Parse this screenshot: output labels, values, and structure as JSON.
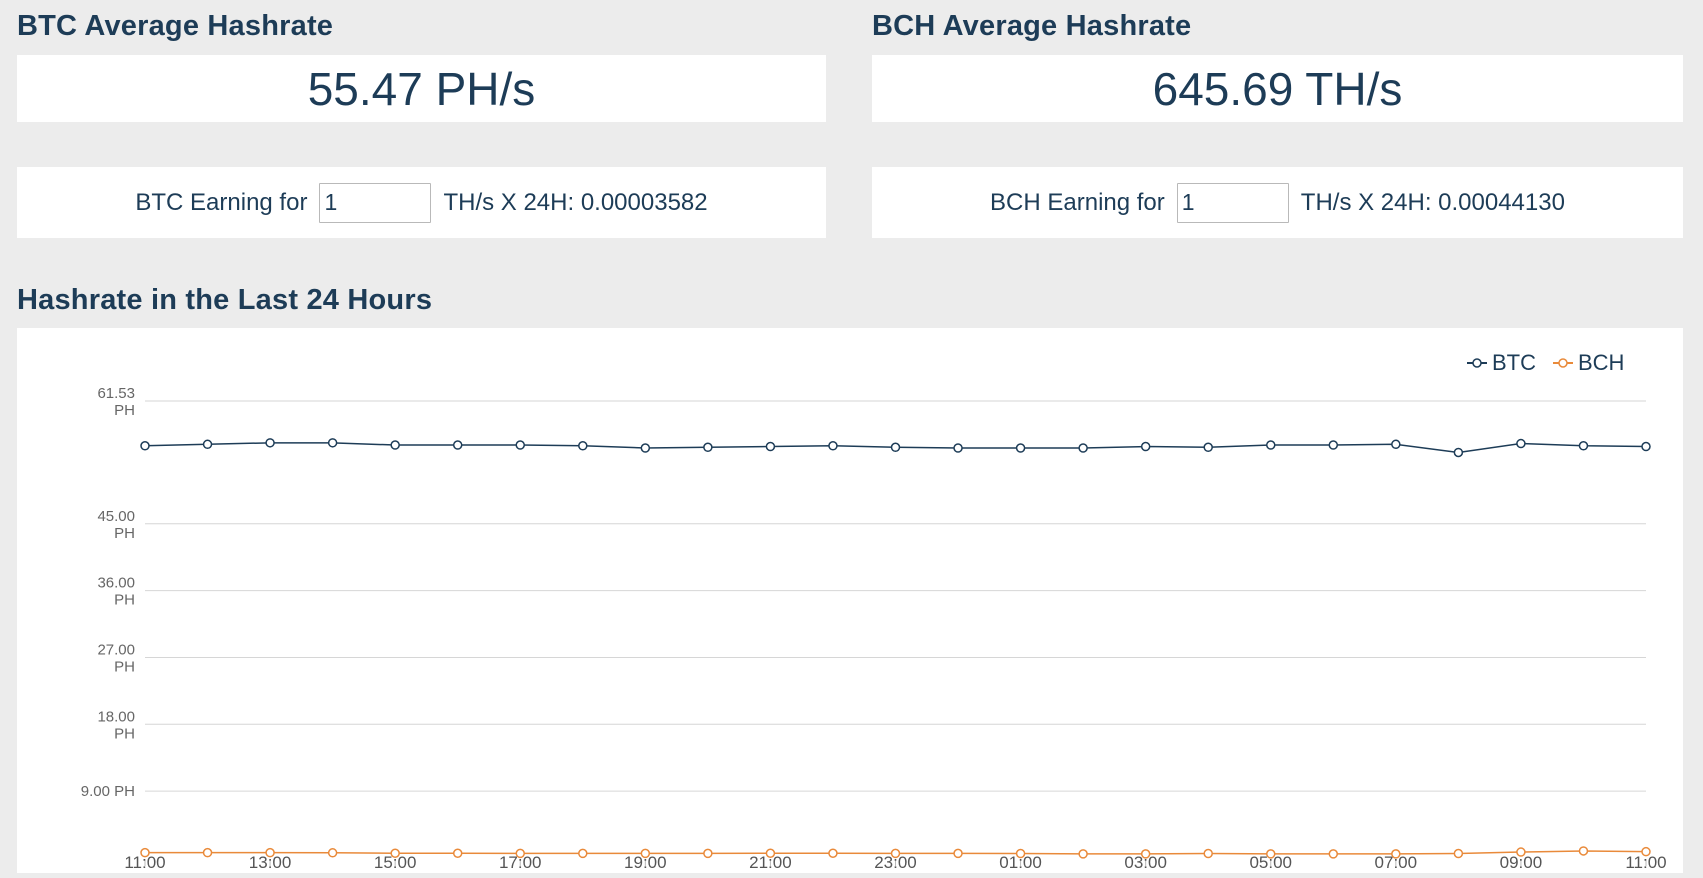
{
  "btc": {
    "title": "BTC Average Hashrate",
    "value": "55.47 PH/s",
    "earning_prefix": "BTC Earning for",
    "input_value": "1",
    "earning_suffix": "TH/s X 24H: 0.00003582"
  },
  "bch": {
    "title": "BCH Average Hashrate",
    "value": "645.69 TH/s",
    "earning_prefix": "BCH Earning for",
    "input_value": "1",
    "earning_suffix": "TH/s X 24H: 0.00044130"
  },
  "chart_section": {
    "title": "Hashrate in the Last 24 Hours"
  },
  "chart_data": {
    "type": "line",
    "title": "",
    "xlabel": "",
    "ylabel": "",
    "unit": "PH",
    "ylim": [
      0,
      61.53
    ],
    "y_ticks": [
      {
        "value": 61.53,
        "number": "61.53",
        "unit": "PH"
      },
      {
        "value": 45.0,
        "number": "45.00",
        "unit": "PH"
      },
      {
        "value": 36.0,
        "number": "36.00",
        "unit": "PH"
      },
      {
        "value": 27.0,
        "number": "27.00",
        "unit": "PH"
      },
      {
        "value": 18.0,
        "number": "18.00",
        "unit": "PH"
      },
      {
        "value": 9.0,
        "number": "9.00 PH",
        "unit": ""
      }
    ],
    "x_tick_labels": [
      "11:00",
      "13:00",
      "15:00",
      "17:00",
      "19:00",
      "21:00",
      "23:00",
      "01:00",
      "03:00",
      "05:00",
      "07:00",
      "09:00",
      "11:00"
    ],
    "x": [
      "11:00",
      "12:00",
      "13:00",
      "14:00",
      "15:00",
      "16:00",
      "17:00",
      "18:00",
      "19:00",
      "20:00",
      "21:00",
      "22:00",
      "23:00",
      "00:00",
      "01:00",
      "02:00",
      "03:00",
      "04:00",
      "05:00",
      "06:00",
      "07:00",
      "08:00",
      "09:00",
      "10:00",
      "11:00"
    ],
    "grid": true,
    "legend_position": "top-right",
    "series": [
      {
        "name": "BTC",
        "color": "#1d3c57",
        "values": [
          55.5,
          55.7,
          55.9,
          55.9,
          55.6,
          55.6,
          55.6,
          55.5,
          55.2,
          55.3,
          55.4,
          55.5,
          55.3,
          55.2,
          55.2,
          55.2,
          55.4,
          55.3,
          55.6,
          55.6,
          55.7,
          54.6,
          55.8,
          55.5,
          55.4
        ]
      },
      {
        "name": "BCH",
        "color": "#e98a3a",
        "values": [
          0.72,
          0.72,
          0.72,
          0.7,
          0.64,
          0.64,
          0.62,
          0.62,
          0.62,
          0.62,
          0.64,
          0.64,
          0.62,
          0.62,
          0.6,
          0.55,
          0.55,
          0.6,
          0.55,
          0.55,
          0.55,
          0.6,
          0.8,
          0.95,
          0.85
        ]
      }
    ]
  }
}
